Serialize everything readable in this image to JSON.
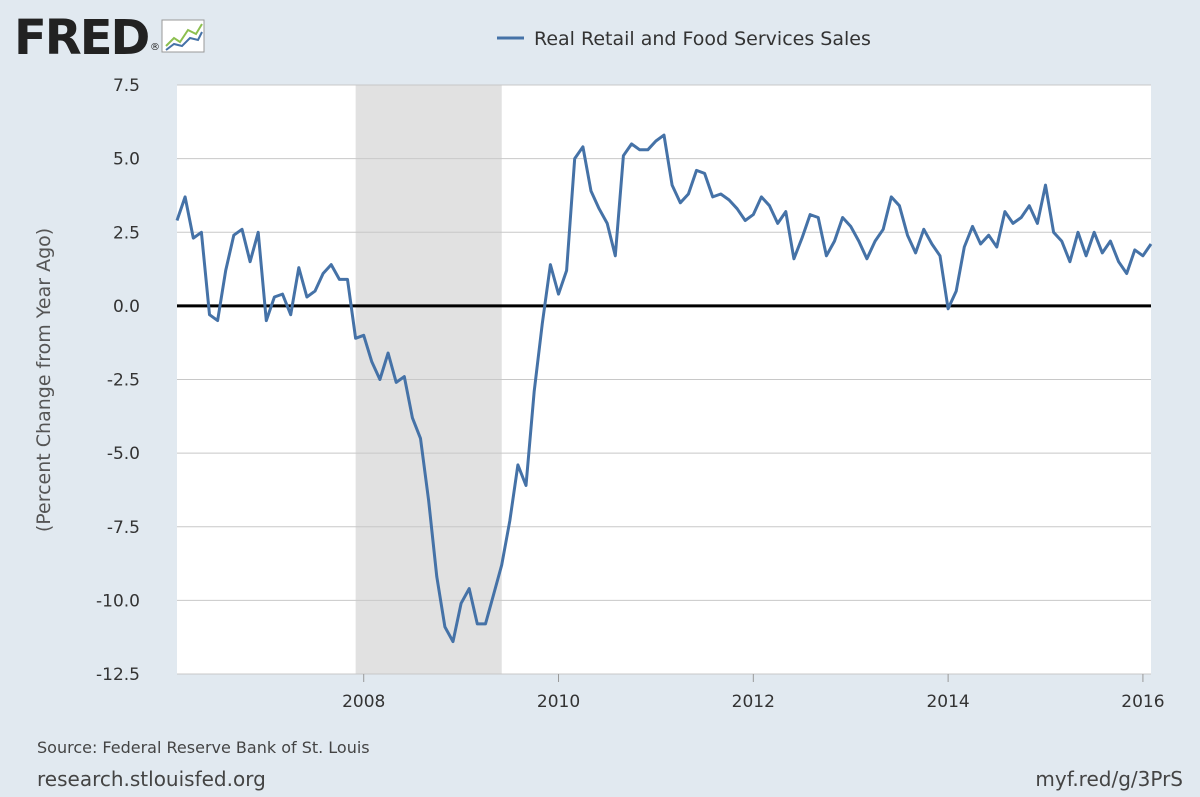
{
  "logo": {
    "text": "FRED",
    "registered": "®"
  },
  "footer": {
    "source": "Source: Federal Reserve Bank of St. Louis",
    "site": "research.stlouisfed.org",
    "short_url": "myf.red/g/3PrS"
  },
  "colors": {
    "background": "#e1e9f0",
    "plot_bg": "#ffffff",
    "series": "#4572a7",
    "recession": "#e1e1e1",
    "grid": "#c8c8c8",
    "zero_line": "#000000",
    "text": "#333333",
    "logo": "#222222",
    "logo_accent_green": "#8cbf4f",
    "logo_accent_blue": "#4572a7"
  },
  "chart_data": {
    "type": "line",
    "title": "",
    "xlabel": "",
    "ylabel": "(Percent Change from Year Ago)",
    "x_range": [
      2006.083,
      2016.083
    ],
    "ylim": [
      -12.5,
      7.5
    ],
    "yticks": [
      7.5,
      5.0,
      2.5,
      0.0,
      -2.5,
      -5.0,
      -7.5,
      -10.0,
      -12.5
    ],
    "ytick_labels": [
      "7.5",
      "5.0",
      "2.5",
      "0.0",
      "-2.5",
      "-5.0",
      "-7.5",
      "-10.0",
      "-12.5"
    ],
    "xticks": [
      2008,
      2010,
      2012,
      2014,
      2016
    ],
    "xtick_labels": [
      "2008",
      "2010",
      "2012",
      "2014",
      "2016"
    ],
    "grid": true,
    "zero_line": true,
    "legend_position": "top-center",
    "recessions": [
      [
        2007.917,
        2009.417
      ]
    ],
    "series": [
      {
        "name": "Real Retail and Food Services Sales",
        "start": "2006-02",
        "frequency": "monthly",
        "values": [
          2.9,
          3.7,
          2.3,
          2.5,
          -0.3,
          -0.5,
          1.2,
          2.4,
          2.6,
          1.5,
          2.5,
          -0.5,
          0.3,
          0.4,
          -0.3,
          1.3,
          0.3,
          0.5,
          1.1,
          1.4,
          0.9,
          0.9,
          -1.1,
          -1.0,
          -1.9,
          -2.5,
          -1.6,
          -2.6,
          -2.4,
          -3.8,
          -4.5,
          -6.6,
          -9.2,
          -10.9,
          -11.4,
          -10.1,
          -9.6,
          -10.8,
          -10.8,
          -9.8,
          -8.8,
          -7.3,
          -5.4,
          -6.1,
          -2.9,
          -0.6,
          1.4,
          0.4,
          1.2,
          5.0,
          5.4,
          3.9,
          3.3,
          2.8,
          1.7,
          5.1,
          5.5,
          5.3,
          5.3,
          5.6,
          5.8,
          4.1,
          3.5,
          3.8,
          4.6,
          4.5,
          3.7,
          3.8,
          3.6,
          3.3,
          2.9,
          3.1,
          3.7,
          3.4,
          2.8,
          3.2,
          1.6,
          2.3,
          3.1,
          3.0,
          1.7,
          2.2,
          3.0,
          2.7,
          2.2,
          1.6,
          2.2,
          2.6,
          3.7,
          3.4,
          2.4,
          1.8,
          2.6,
          2.1,
          1.7,
          -0.1,
          0.5,
          2.0,
          2.7,
          2.1,
          2.4,
          2.0,
          3.2,
          2.8,
          3.0,
          3.4,
          2.8,
          4.1,
          2.5,
          2.2,
          1.5,
          2.5,
          1.7,
          2.5,
          1.8,
          2.2,
          1.5,
          1.1,
          1.9,
          1.7,
          2.1
        ]
      }
    ]
  }
}
